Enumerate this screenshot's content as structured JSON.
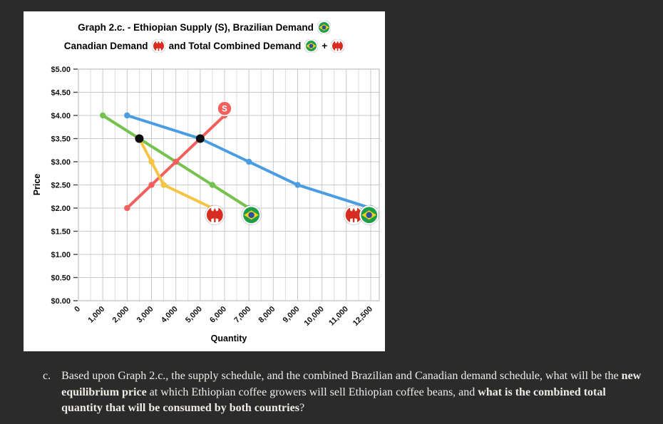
{
  "chart": {
    "title_line1": "Graph 2.c. - Ethiopian Supply (S), Brazilian Demand",
    "title_line2a": "Canadian Demand",
    "title_line2b": "and Total Combined Demand",
    "title_plus": "+",
    "colors": {
      "supply": "#f2605e",
      "brazil_demand": "#77c14f",
      "canada_demand": "#f6c443",
      "total_demand": "#4a9de2",
      "equilibrium_dot": "#0d0d0d",
      "grid": "#c9c9c9",
      "panel": "#ffffff",
      "page_background": "#2b2b2c"
    }
  },
  "chart_data": {
    "type": "line",
    "title": "Graph 2.c. - Ethiopian Supply (S), Brazilian Demand, Canadian Demand and Total Combined Demand",
    "xlabel": "Quantity",
    "ylabel": "Price",
    "x_tick_labels": [
      "0",
      "1,000",
      "2,000",
      "3,000",
      "4,000",
      "5,000",
      "6,000",
      "7,000",
      "8,000",
      "9,000",
      "10,000",
      "11,000",
      "12,500"
    ],
    "x_tick_values": [
      0,
      1000,
      2000,
      3000,
      4000,
      5000,
      6000,
      7000,
      8000,
      9000,
      10000,
      11000,
      12500
    ],
    "y_tick_labels": [
      "$5.00",
      "$4.50",
      "$4.00",
      "$3.50",
      "$3.00",
      "$2.50",
      "$2.00",
      "$1.50",
      "$1.00",
      "$0.50",
      "$0.00"
    ],
    "y_tick_values": [
      5.0,
      4.5,
      4.0,
      3.5,
      3.0,
      2.5,
      2.0,
      1.5,
      1.0,
      0.5,
      0.0
    ],
    "ylim": [
      0,
      5
    ],
    "xlim": [
      0,
      12500
    ],
    "grid": true,
    "legend_position": "none",
    "series": [
      {
        "name": "Ethiopian Supply (S)",
        "color": "#f2605e",
        "points": [
          [
            2000,
            2.0
          ],
          [
            3000,
            2.5
          ],
          [
            4000,
            3.0
          ],
          [
            5000,
            3.5
          ],
          [
            6000,
            4.0
          ]
        ]
      },
      {
        "name": "Brazilian Demand",
        "color": "#77c14f",
        "points": [
          [
            1000,
            4.0
          ],
          [
            2500,
            3.5
          ],
          [
            4000,
            3.0
          ],
          [
            5500,
            2.5
          ],
          [
            7000,
            2.0
          ]
        ]
      },
      {
        "name": "Canadian Demand",
        "color": "#f6c443",
        "points": [
          [
            2500,
            3.5
          ],
          [
            3000,
            3.0
          ],
          [
            3500,
            2.5
          ],
          [
            5500,
            2.0
          ]
        ]
      },
      {
        "name": "Total Combined Demand",
        "color": "#4a9de2",
        "points": [
          [
            2000,
            4.0
          ],
          [
            5000,
            3.5
          ],
          [
            7000,
            3.0
          ],
          [
            9000,
            2.5
          ],
          [
            12500,
            2.0
          ]
        ]
      }
    ],
    "equilibrium_markers": [
      {
        "q": 2500,
        "p": 3.5
      },
      {
        "q": 5000,
        "p": 3.5
      }
    ],
    "supply_label": {
      "text": "S",
      "q": 6000,
      "p": 4.15
    },
    "flag_markers": [
      {
        "flag": "canada",
        "q": 5600,
        "p": 1.85
      },
      {
        "flag": "brazil",
        "q": 7100,
        "p": 1.85
      },
      {
        "flag": "canada",
        "q": 11450,
        "p": 1.85
      },
      {
        "flag": "brazil",
        "q": 12400,
        "p": 1.85
      }
    ]
  },
  "question": {
    "marker": "c.",
    "part1": "Based upon Graph 2.c., the supply schedule, and the combined Brazilian and Canadian demand schedule, what will be the ",
    "bold1": "new equilibrium price",
    "part2": " at which Ethiopian coffee growers will sell Ethiopian coffee beans, and ",
    "bold2": "what is the combined total quantity that will be consumed by both countries",
    "part3": "?"
  }
}
